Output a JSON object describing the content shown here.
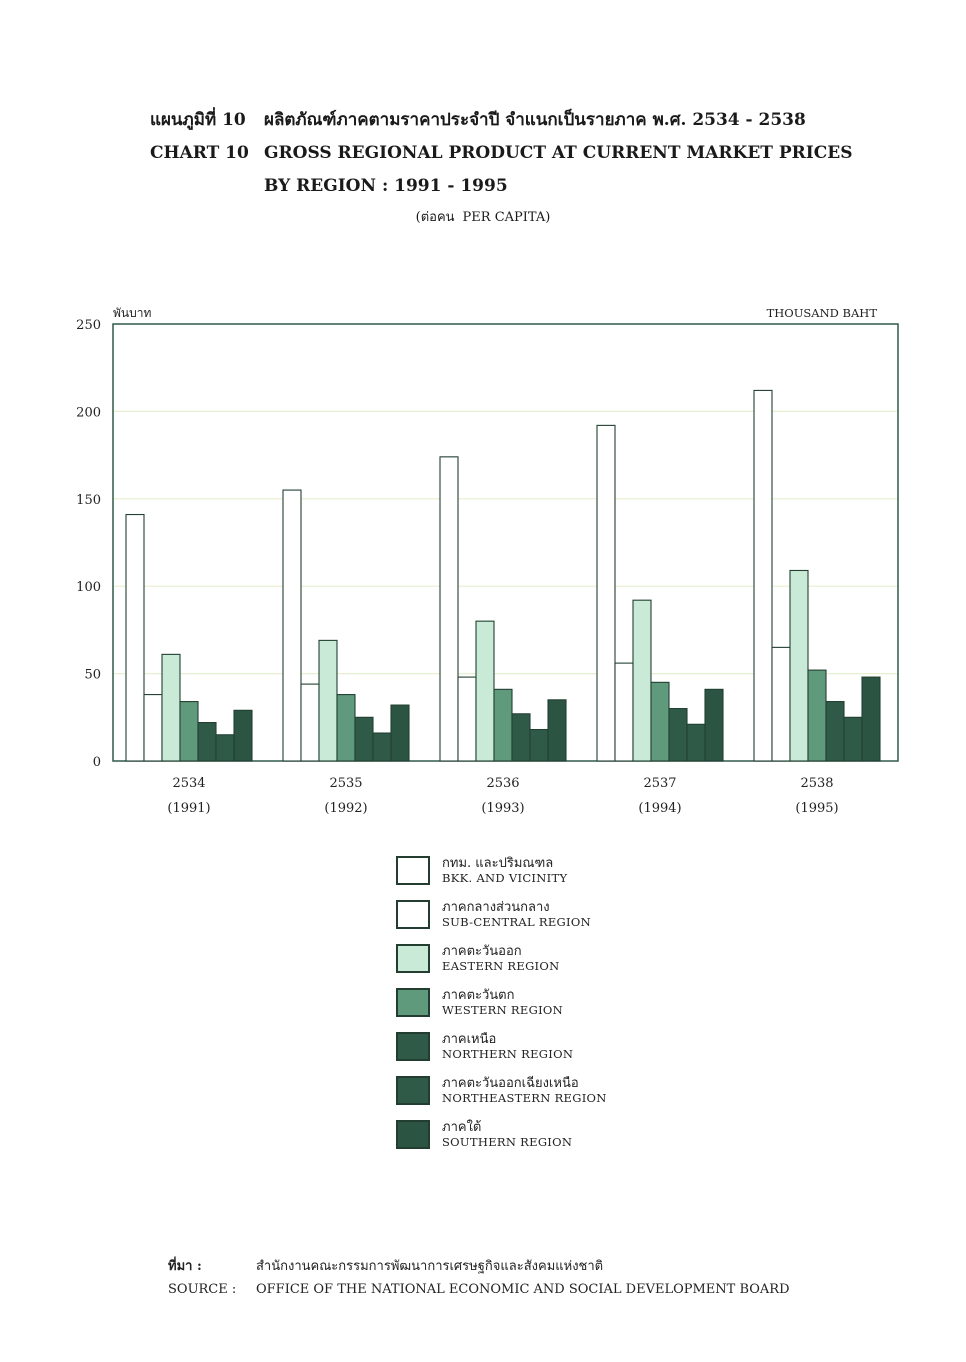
{
  "title": {
    "th_label": "แผนภูมิที่ 10",
    "th_text": "ผลิตภัณฑ์ภาคตามราคาประจำปี จำแนกเป็นรายภาค พ.ศ. 2534 - 2538",
    "en_label": "CHART 10",
    "en_text": "GROSS REGIONAL PRODUCT AT CURRENT MARKET PRICES",
    "en_text2": "BY REGION : 1991 - 1995",
    "unit_th": "(ต่อคน",
    "unit_en": "PER CAPITA)"
  },
  "chart_data": {
    "type": "bar",
    "categories": [
      "2534",
      "2535",
      "2536",
      "2537",
      "2538"
    ],
    "categories_sub": [
      "(1991)",
      "(1992)",
      "(1993)",
      "(1994)",
      "(1995)"
    ],
    "ylabel_th": "พันบาท",
    "ylabel_en": "THOUSAND BAHT",
    "ylim": [
      0,
      250
    ],
    "yticks": [
      0,
      50,
      100,
      150,
      200,
      250
    ],
    "grid": true,
    "legend_placement": "bottom",
    "series": [
      {
        "name": "BKK. AND VICINITY",
        "name_th": "กทม. และปริมณฑล",
        "color": "#ffffff",
        "values": [
          141,
          155,
          174,
          192,
          212
        ]
      },
      {
        "name": "SUB-CENTRAL REGION",
        "name_th": "ภาคกลางส่วนกลาง",
        "color": "#ffffff",
        "values": [
          38,
          44,
          48,
          56,
          65
        ]
      },
      {
        "name": "EASTERN REGION",
        "name_th": "ภาคตะวันออก",
        "color": "#c9ead6",
        "values": [
          61,
          69,
          80,
          92,
          109
        ]
      },
      {
        "name": "WESTERN REGION",
        "name_th": "ภาคตะวันตก",
        "color": "#5f9a7c",
        "values": [
          34,
          38,
          41,
          45,
          52
        ]
      },
      {
        "name": "NORTHERN REGION",
        "name_th": "ภาคเหนือ",
        "color": "#2f5a48",
        "values": [
          22,
          25,
          27,
          30,
          34
        ]
      },
      {
        "name": "NORTHEASTERN REGION",
        "name_th": "ภาคตะวันออกเฉียงเหนือ",
        "color": "#2f5a48",
        "values": [
          15,
          16,
          18,
          21,
          25
        ]
      },
      {
        "name": "SOUTHERN REGION",
        "name_th": "ภาคใต้",
        "color": "#2b5443",
        "values": [
          29,
          32,
          35,
          41,
          48
        ]
      }
    ]
  },
  "source": {
    "th_key": "ที่มา  :",
    "th_text": "สำนักงานคณะกรรมการพัฒนาการเศรษฐกิจและสังคมแห่งชาติ",
    "en_key": "SOURCE  :",
    "en_text": "OFFICE OF THE NATIONAL ECONOMIC AND SOCIAL DEVELOPMENT BOARD"
  }
}
